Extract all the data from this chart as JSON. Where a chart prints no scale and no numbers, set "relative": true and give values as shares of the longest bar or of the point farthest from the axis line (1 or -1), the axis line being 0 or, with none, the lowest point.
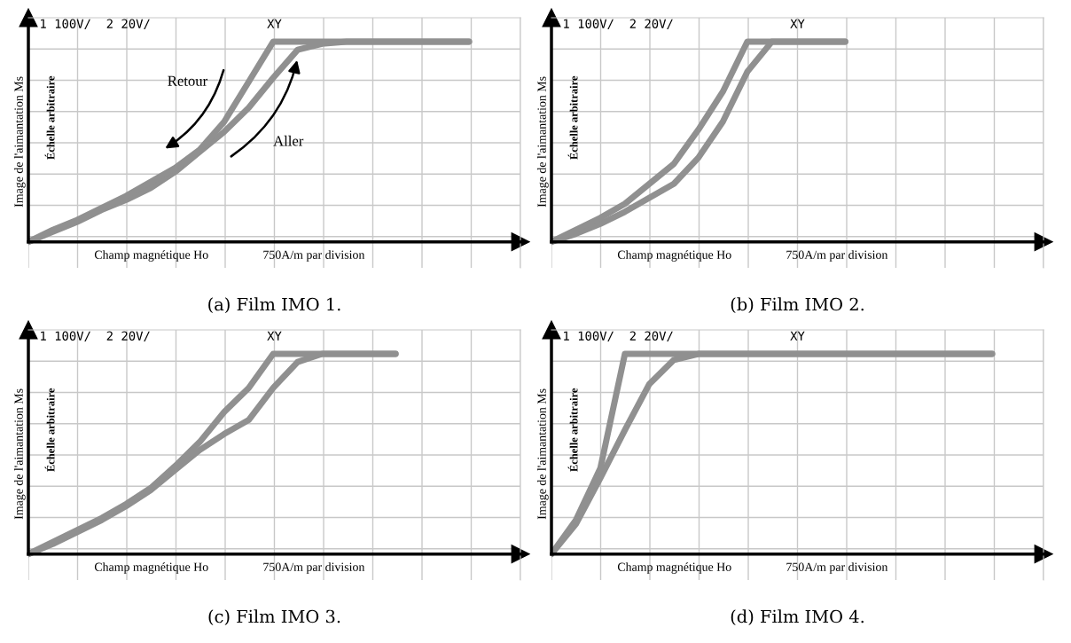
{
  "chart_data": [
    {
      "type": "line",
      "relative": true,
      "grid": true,
      "title": "(a) Film IMO 1.",
      "xlabel": "Champ magnétique Ho",
      "ylabel": "Image de l'aimantation Ms",
      "annotations": [
        "Échelle arbitraire",
        "750A/m par division",
        "1 100V/  2 20V/",
        "XY",
        "Retour",
        "Aller"
      ],
      "categories": [
        null,
        null,
        null,
        null,
        null,
        null,
        null,
        null,
        null,
        null,
        null,
        null,
        null,
        null,
        null,
        null,
        null,
        null,
        null
      ],
      "series": [
        {
          "color": "#909090",
          "values": [
            0,
            0.05,
            0.1,
            0.16,
            0.21,
            0.27,
            0.35,
            0.45,
            0.55,
            0.67,
            0.82,
            0.96,
            0.99,
            1,
            1,
            1,
            1,
            1,
            1
          ]
        },
        {
          "color": "#909090",
          "values": [
            0,
            0.06,
            0.11,
            0.17,
            0.23,
            0.3,
            0.37,
            0.46,
            0.6,
            0.8,
            1,
            1,
            1,
            1,
            1,
            1,
            1,
            1,
            1
          ]
        }
      ]
    },
    {
      "type": "line",
      "relative": true,
      "grid": true,
      "title": "(b) Film IMO 2.",
      "xlabel": "Champ magnétique Ho",
      "ylabel": "Image de l'aimantation Ms",
      "annotations": [
        "Échelle arbitraire",
        "750A/m par division",
        "1 100V/  2 20V/",
        "XY"
      ],
      "categories": [
        null,
        null,
        null,
        null,
        null,
        null,
        null,
        null,
        null,
        null,
        null,
        null,
        null
      ],
      "series": [
        {
          "color": "#909090",
          "values": [
            0,
            0.04,
            0.09,
            0.15,
            0.22,
            0.29,
            0.42,
            0.6,
            0.85,
            1,
            1,
            1,
            1
          ]
        },
        {
          "color": "#909090",
          "values": [
            0,
            0.06,
            0.12,
            0.19,
            0.29,
            0.39,
            0.56,
            0.75,
            1,
            1,
            1,
            1,
            1
          ]
        }
      ]
    },
    {
      "type": "line",
      "relative": true,
      "grid": true,
      "title": "(c) Film IMO 3.",
      "xlabel": "Champ magnétique Ho",
      "ylabel": "Image de l'aimantation Ms",
      "annotations": [
        "Échelle arbitraire",
        "750A/m par division",
        "1 100V/  2 20V/",
        "XY"
      ],
      "categories": [
        null,
        null,
        null,
        null,
        null,
        null,
        null,
        null,
        null,
        null,
        null,
        null,
        null,
        null,
        null,
        null
      ],
      "series": [
        {
          "color": "#909090",
          "values": [
            0,
            0.05,
            0.11,
            0.17,
            0.24,
            0.32,
            0.42,
            0.52,
            0.6,
            0.67,
            0.83,
            0.96,
            1,
            1,
            1,
            1
          ]
        },
        {
          "color": "#909090",
          "values": [
            0,
            0.06,
            0.12,
            0.18,
            0.25,
            0.33,
            0.44,
            0.56,
            0.71,
            0.83,
            1,
            1,
            1,
            1,
            1,
            1
          ]
        }
      ]
    },
    {
      "type": "line",
      "relative": true,
      "grid": true,
      "title": "(d) Film IMO 4.",
      "xlabel": "Champ magnétique Ho",
      "ylabel": "Image de l'aimantation Ms",
      "annotations": [
        "Échelle arbitraire",
        "750A/m par division",
        "1 100V/  2 20V/",
        "XY"
      ],
      "categories": [
        null,
        null,
        null,
        null,
        null,
        null,
        null,
        null,
        null,
        null,
        null,
        null,
        null,
        null,
        null,
        null,
        null,
        null,
        null
      ],
      "series": [
        {
          "color": "#909090",
          "values": [
            0,
            0.15,
            0.38,
            0.62,
            0.85,
            0.97,
            1,
            1,
            1,
            1,
            1,
            1,
            1,
            1,
            1,
            1,
            1,
            1,
            1
          ]
        },
        {
          "color": "#909090",
          "values": [
            0,
            0.17,
            0.43,
            1,
            1,
            1,
            1,
            1,
            1,
            1,
            1,
            1,
            1,
            1,
            1,
            1,
            1,
            1,
            1
          ]
        }
      ]
    }
  ]
}
